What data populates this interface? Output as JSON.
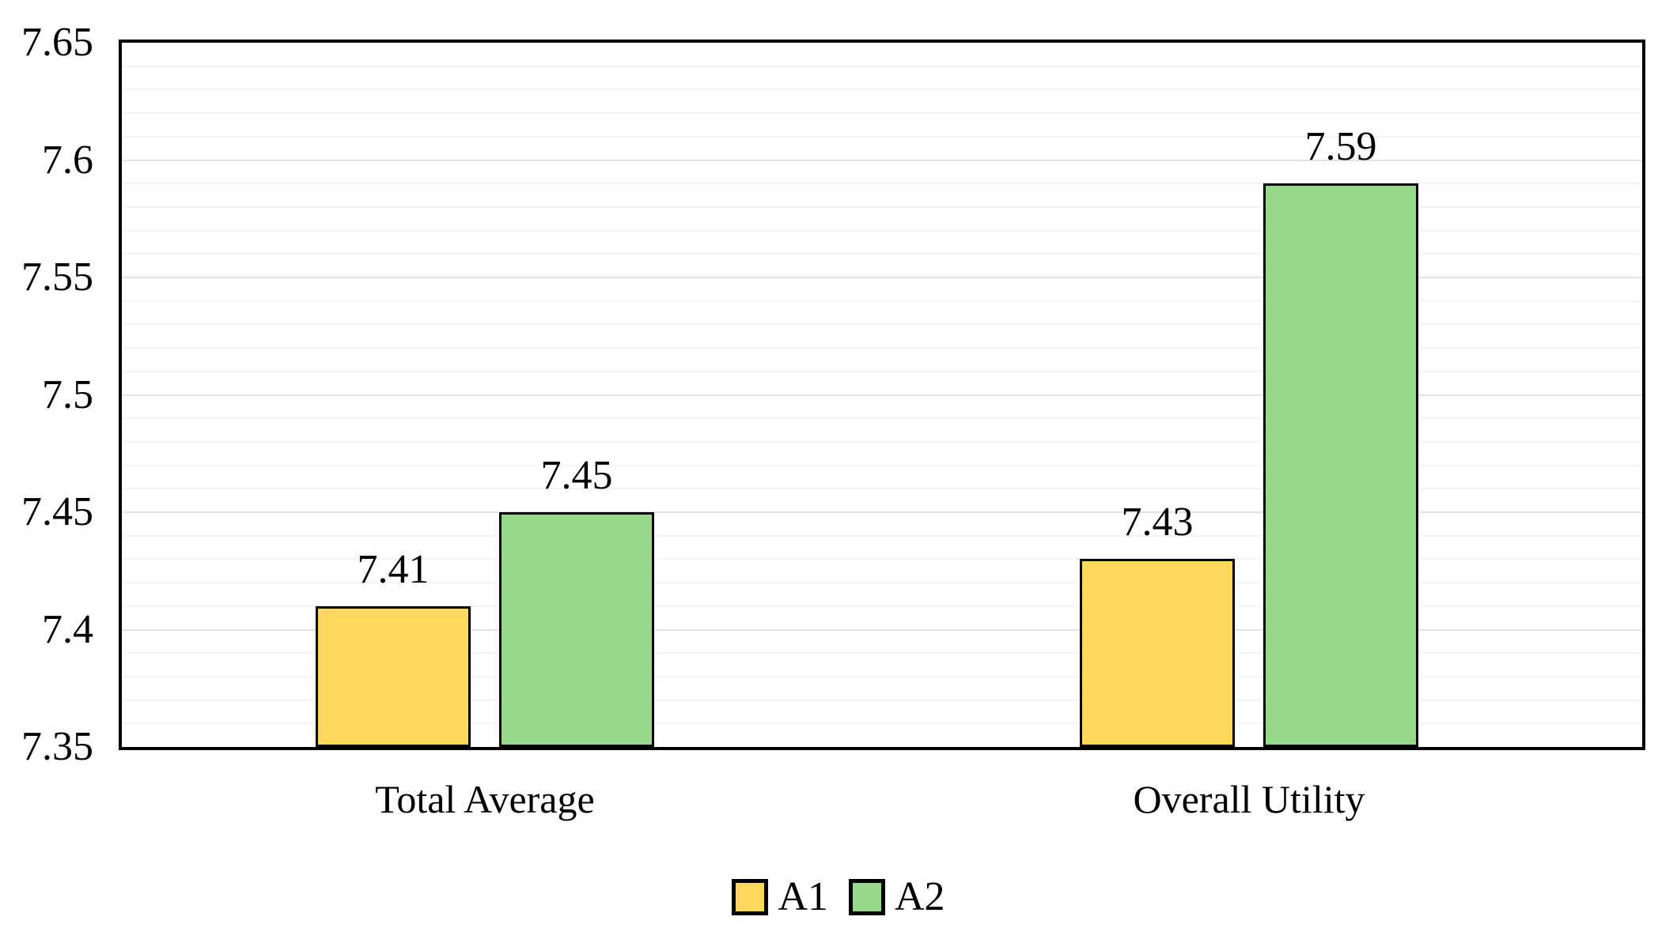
{
  "chart_data": {
    "type": "bar",
    "title": "",
    "xlabel": "",
    "ylabel": "",
    "categories": [
      "Total Average",
      "Overall Utility"
    ],
    "series": [
      {
        "name": "A1",
        "color": "#FFD75C",
        "values": [
          7.41,
          7.43
        ],
        "labels": [
          "7.41",
          "7.43"
        ]
      },
      {
        "name": "A2",
        "color": "#97D88B",
        "values": [
          7.45,
          7.59
        ],
        "labels": [
          "7.45",
          "7.59"
        ]
      }
    ],
    "ylim": [
      7.35,
      7.65
    ],
    "yticks": [
      7.35,
      7.4,
      7.45,
      7.5,
      7.55,
      7.6,
      7.65
    ],
    "ytick_labels": [
      "7.35",
      "7.4",
      "7.45",
      "7.5",
      "7.55",
      "7.6",
      "7.65"
    ],
    "grid": true,
    "minor_grid_step": 0.01,
    "major_grid_step": 0.05,
    "grid_minor_color": "#F3F3F3",
    "grid_major_color": "#E4E4E4",
    "plot_border_color": "#000000",
    "bar_border_color": "#000000",
    "background_color": "#FFFFFF",
    "legend_position": "bottom",
    "legend": [
      "A1",
      "A2"
    ]
  }
}
